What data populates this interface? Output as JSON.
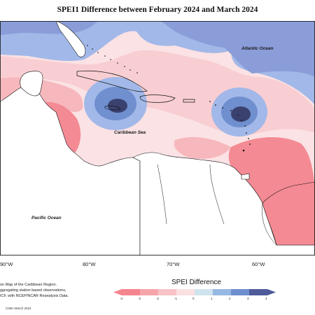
{
  "title": "SPEI1 Difference between February 2024 and March 2024",
  "labels": {
    "atlantic": "Atlantic Ocean",
    "caribbean": "Caribbean Sea",
    "pacific": "Pacific Ocean"
  },
  "longitudes": [
    "90°W",
    "80°W",
    "70°W",
    "60°W"
  ],
  "caption_lines": [
    "on Map of the Caribbean Region.",
    "ggregating station based observations,",
    "ICF, with NCEP/NCAR Reanalysis Data."
  ],
  "credit": "CIMH March 2024",
  "legend": {
    "title": "SPEI Difference",
    "ticks": [
      "-4",
      "-3",
      "-2",
      "-1",
      "0",
      "1",
      "2",
      "3",
      "4"
    ],
    "colors": [
      "#f4858e",
      "#f6a5ab",
      "#f8c3c7",
      "#fbe0e2",
      "#ffffff",
      "#cfe3ee",
      "#97b8e2",
      "#6f8fcf",
      "#4e5a9a"
    ]
  },
  "colors": {
    "land": "#ffffff",
    "strong_dry": "#f48a93",
    "dry": "#f6b7bd",
    "light_dry": "#fbe2e4",
    "wet": "#a2b8e8",
    "strong_wet": "#5d6da8",
    "very_wet": "#3b416f"
  }
}
